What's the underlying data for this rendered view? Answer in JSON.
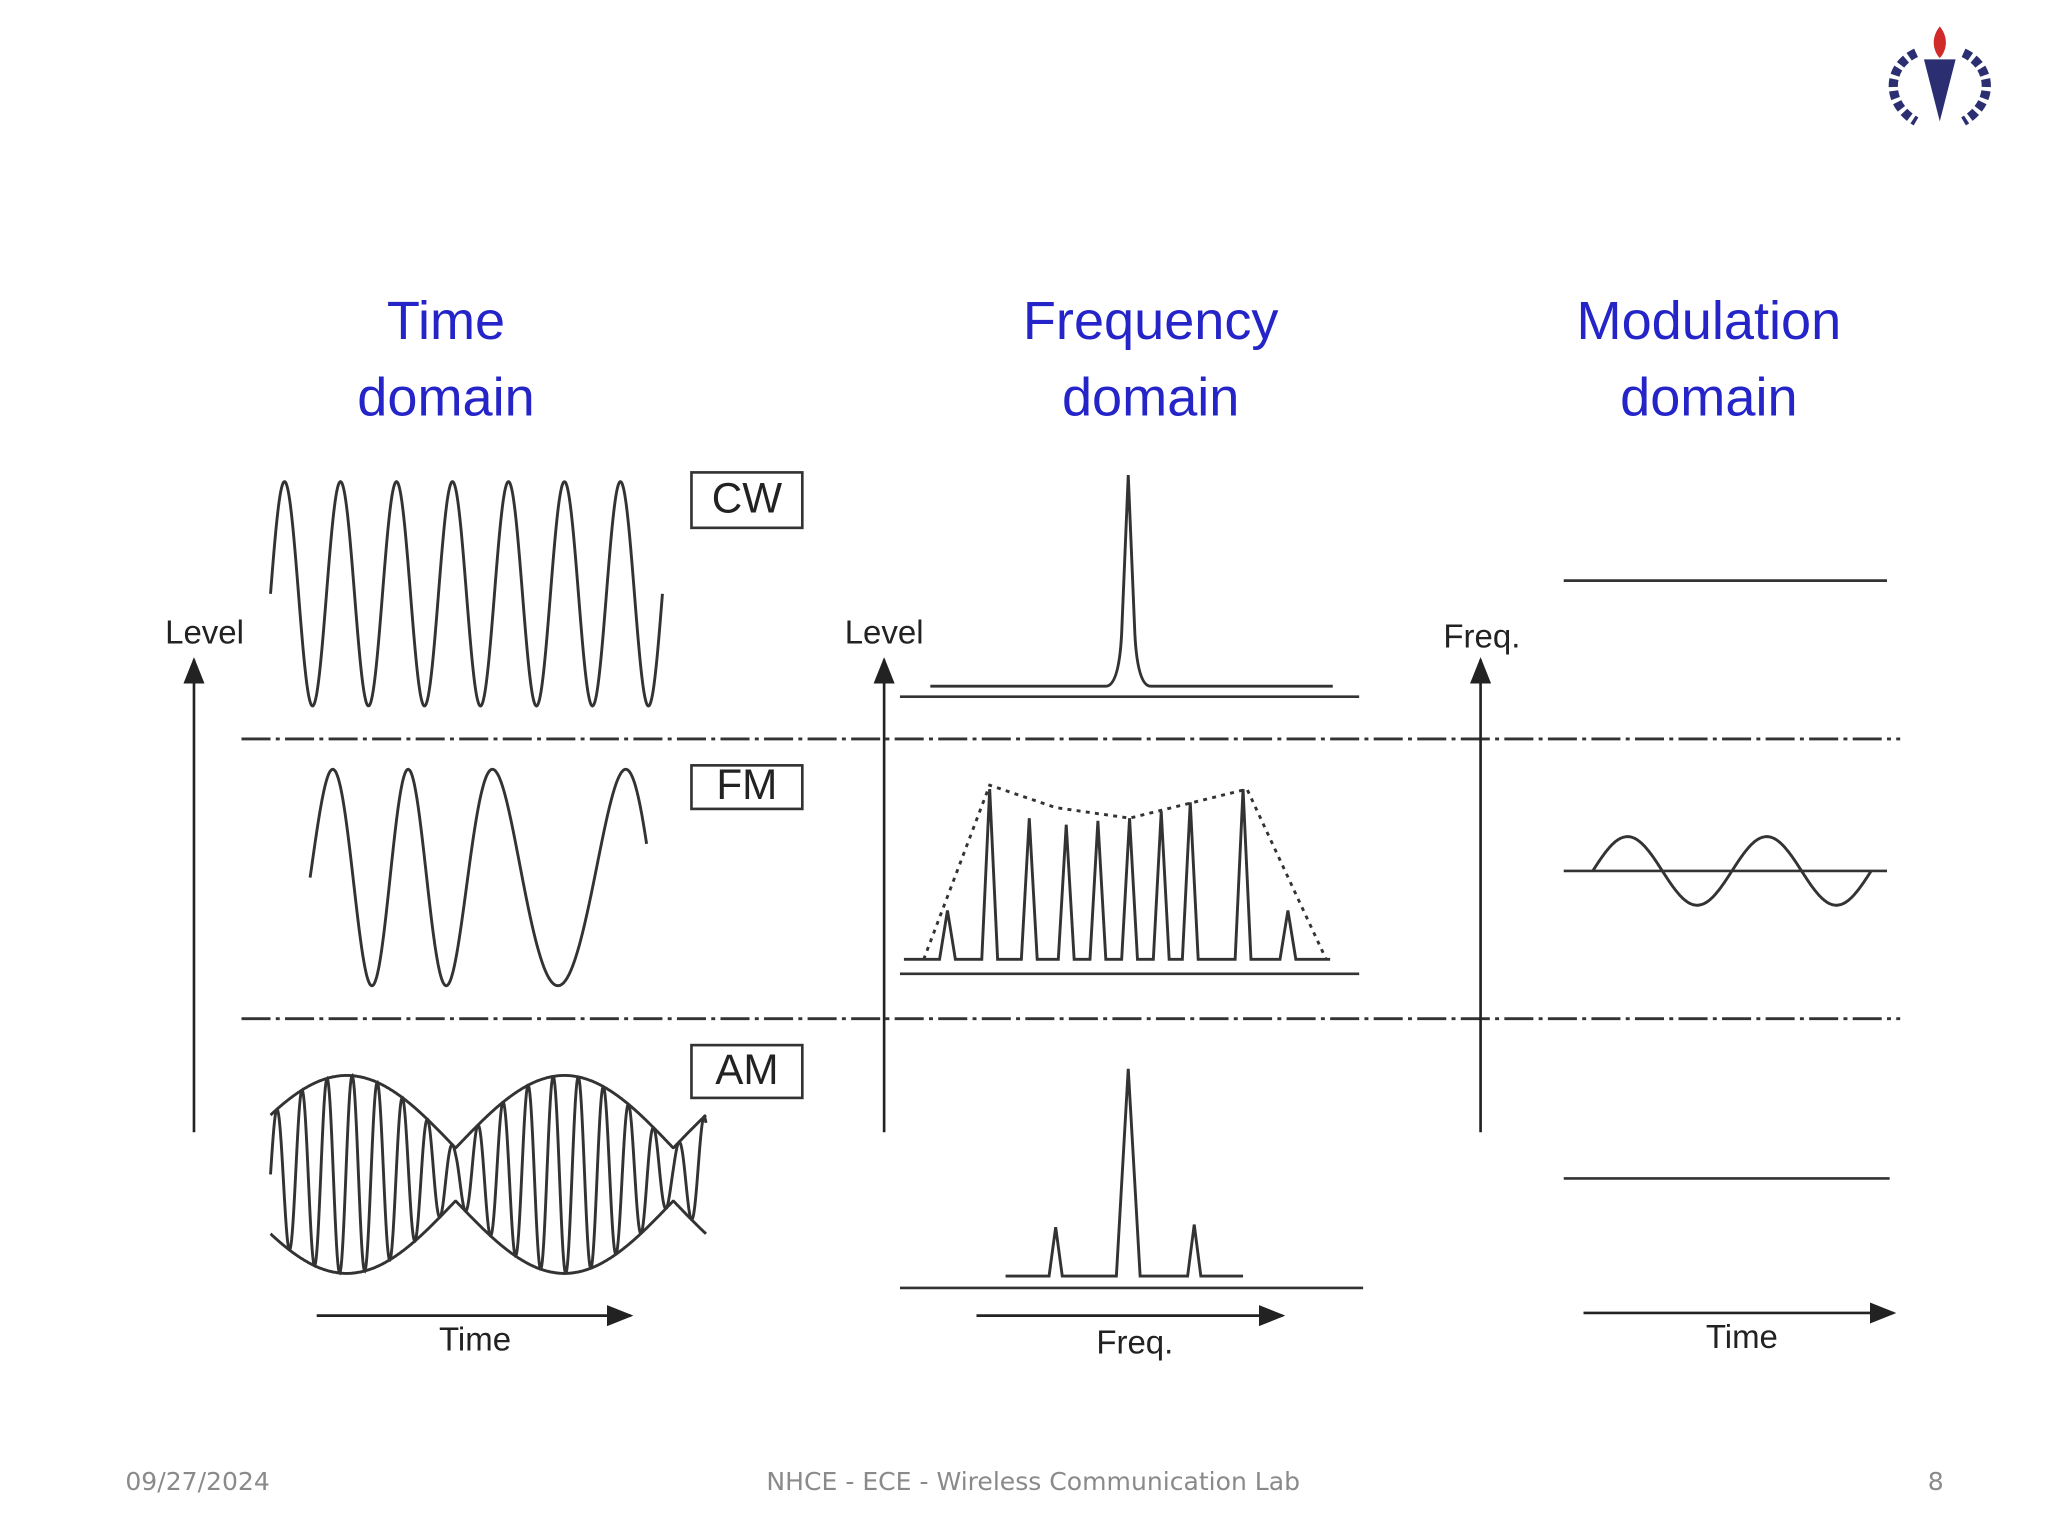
{
  "headers": [
    {
      "lines": [
        "Time",
        "domain"
      ]
    },
    {
      "lines": [
        "Frequency",
        "domain"
      ]
    },
    {
      "lines": [
        "Modulation",
        "domain"
      ]
    }
  ],
  "rows": [
    "CW",
    "FM",
    "AM"
  ],
  "axes": {
    "time_level": "Level",
    "freq_level": "Level",
    "mod_freq": "Freq.",
    "time_x": "Time",
    "freq_x": "Freq.",
    "mod_x": "Time"
  },
  "footer": {
    "date": "09/27/2024",
    "center": "NHCE - ECE -  Wireless Communication Lab",
    "page": "8"
  }
}
